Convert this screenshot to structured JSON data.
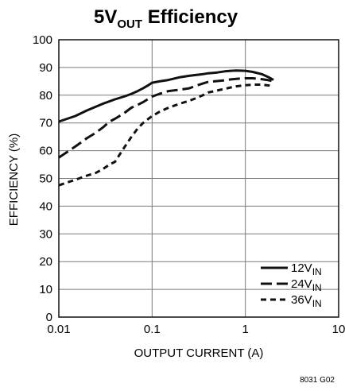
{
  "chart_data": {
    "type": "line",
    "title": {
      "main": "5V",
      "sub": "OUT",
      "tail": " Efficiency"
    },
    "xlabel": "OUTPUT CURRENT (A)",
    "ylabel": "EFFICIENCY (%)",
    "xscale": "log",
    "xlim": [
      0.01,
      10
    ],
    "ylim": [
      0,
      100
    ],
    "xticks": [
      {
        "value": 0.01,
        "label": "0.01"
      },
      {
        "value": 0.1,
        "label": "0.1"
      },
      {
        "value": 1,
        "label": "1"
      },
      {
        "value": 10,
        "label": "10"
      }
    ],
    "yticks": [
      0,
      10,
      20,
      30,
      40,
      50,
      60,
      70,
      80,
      90,
      100
    ],
    "grid": true,
    "legend_position": "bottom-right",
    "series": [
      {
        "name": "12V",
        "name_sub": "IN",
        "dash": "solid",
        "x": [
          0.01,
          0.015,
          0.02,
          0.03,
          0.04,
          0.05,
          0.06,
          0.07,
          0.08,
          0.09,
          0.1,
          0.12,
          0.15,
          0.2,
          0.25,
          0.3,
          0.35,
          0.4,
          0.5,
          0.6,
          0.7,
          0.8,
          1.0,
          1.2,
          1.5,
          1.8,
          2.0
        ],
        "y": [
          70.5,
          72.5,
          74.5,
          77,
          78.5,
          79.5,
          80.5,
          81.5,
          82.5,
          83.5,
          84.5,
          85,
          85.5,
          86.5,
          87,
          87.3,
          87.6,
          87.9,
          88.2,
          88.6,
          88.8,
          88.9,
          88.8,
          88.4,
          87.6,
          86.4,
          85.5
        ]
      },
      {
        "name": "24V",
        "name_sub": "IN",
        "dash": "long",
        "x": [
          0.01,
          0.015,
          0.02,
          0.025,
          0.03,
          0.035,
          0.04,
          0.05,
          0.06,
          0.07,
          0.08,
          0.1,
          0.12,
          0.15,
          0.2,
          0.25,
          0.3,
          0.35,
          0.4,
          0.5,
          0.6,
          0.7,
          0.8,
          1.0,
          1.2,
          1.5,
          1.8,
          2.0
        ],
        "y": [
          57.5,
          61.5,
          64.5,
          66.5,
          68.5,
          70.5,
          71.5,
          73.5,
          75.5,
          76.5,
          77.5,
          79.5,
          80.5,
          81.5,
          82,
          82.5,
          83.5,
          84.2,
          84.8,
          85.1,
          85.4,
          85.7,
          85.9,
          86.1,
          86.1,
          85.8,
          85.4,
          85
        ]
      },
      {
        "name": "36V",
        "name_sub": "IN",
        "dash": "short",
        "x": [
          0.01,
          0.015,
          0.02,
          0.025,
          0.03,
          0.035,
          0.04,
          0.05,
          0.06,
          0.07,
          0.08,
          0.1,
          0.12,
          0.15,
          0.2,
          0.25,
          0.3,
          0.35,
          0.4,
          0.5,
          0.6,
          0.7,
          0.8,
          1.0,
          1.2,
          1.5,
          1.8,
          2.0
        ],
        "y": [
          47.5,
          49.5,
          51,
          52,
          53.5,
          55,
          56,
          61,
          65,
          68,
          70,
          72.5,
          74,
          75.5,
          77,
          78,
          79,
          80,
          81,
          81.7,
          82.3,
          82.8,
          83.2,
          83.6,
          83.8,
          83.8,
          83.5,
          83.1
        ]
      }
    ],
    "figure_number": "8031 G02"
  }
}
